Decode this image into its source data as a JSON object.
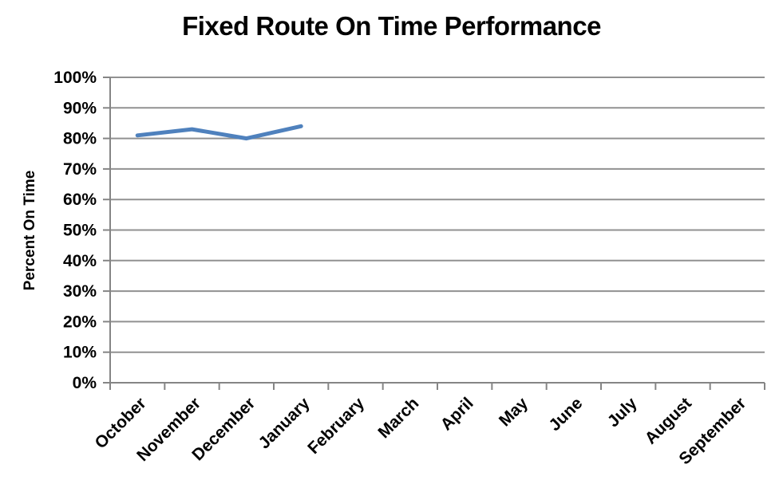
{
  "chart_data": {
    "type": "line",
    "title": "Fixed Route On Time Performance",
    "ylabel": "Percent On Time",
    "xlabel": "",
    "categories": [
      "October",
      "November",
      "December",
      "January",
      "February",
      "March",
      "April",
      "May",
      "June",
      "July",
      "August",
      "September"
    ],
    "series": [
      {
        "name": "Percent On Time",
        "values": [
          81,
          83,
          80,
          84,
          null,
          null,
          null,
          null,
          null,
          null,
          null,
          null
        ],
        "color": "#4F81BD",
        "line_width": 5
      }
    ],
    "ylim": [
      0,
      100
    ],
    "y_ticks": [
      "0%",
      "10%",
      "20%",
      "30%",
      "40%",
      "50%",
      "60%",
      "70%",
      "80%",
      "90%",
      "100%"
    ],
    "grid": true,
    "legend": "none",
    "colors": {
      "gridline": "#919191",
      "axis": "#858585",
      "text": "#000000",
      "background": "#FFFFFF"
    }
  }
}
